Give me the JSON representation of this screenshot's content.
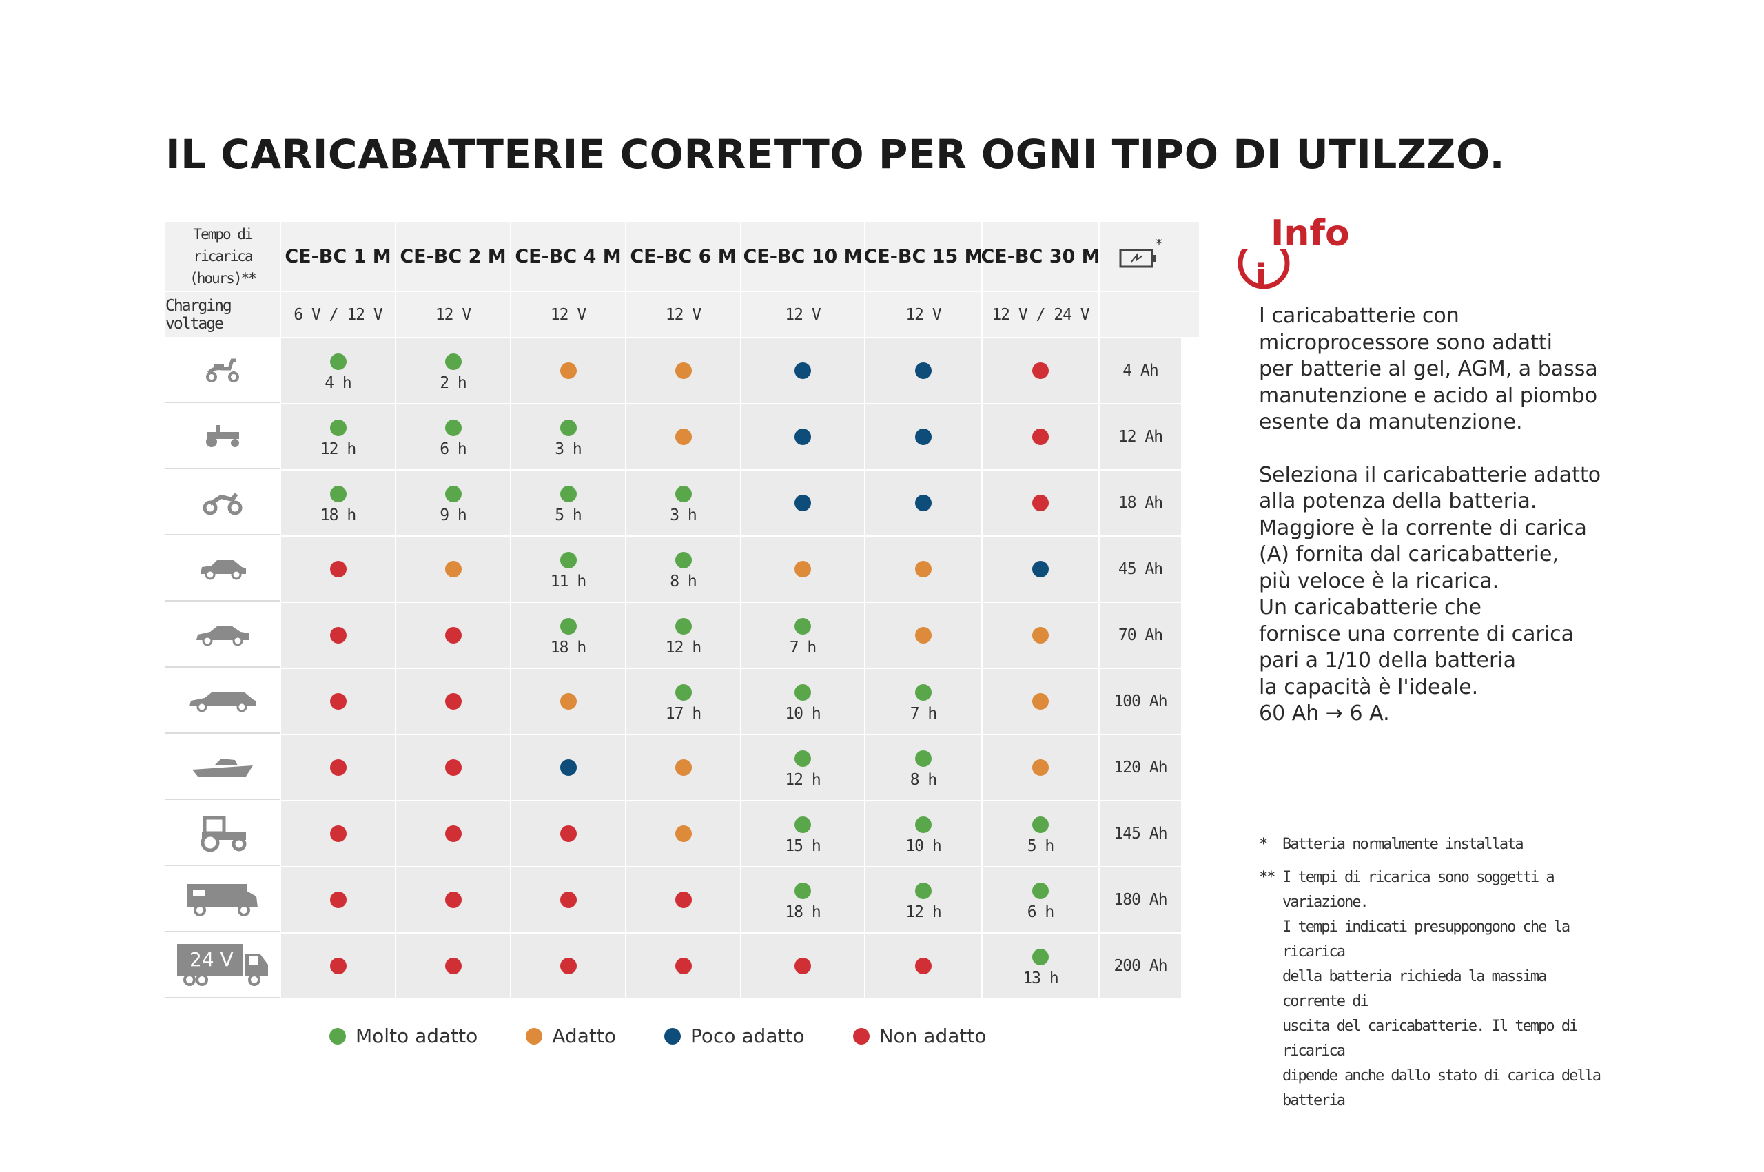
{
  "title": "IL CARICABATTERIE CORRETTO PER OGNI TIPO DI UTILZZO.",
  "table": {
    "time_header": [
      "Tempo di",
      "ricarica (hours)**"
    ],
    "voltage_label": "Charging voltage",
    "models": [
      "CE-BC 1 M",
      "CE-BC 2 M",
      "CE-BC 4 M",
      "CE-BC 6 M",
      "CE-BC 10 M",
      "CE-BC 15 M",
      "CE-BC 30 M"
    ],
    "battery_header_mark": "*",
    "voltages": [
      "6 V / 12 V",
      "12 V",
      "12 V",
      "12 V",
      "12 V",
      "12 V",
      "12 V / 24 V"
    ],
    "rows": [
      {
        "vehicle": "scooter-icon",
        "cells": [
          {
            "rating": "g",
            "hours": "4 h"
          },
          {
            "rating": "g",
            "hours": "2 h"
          },
          {
            "rating": "o",
            "hours": ""
          },
          {
            "rating": "o",
            "hours": ""
          },
          {
            "rating": "b",
            "hours": ""
          },
          {
            "rating": "b",
            "hours": ""
          },
          {
            "rating": "r",
            "hours": ""
          }
        ],
        "capacity": "4 Ah"
      },
      {
        "vehicle": "lawn-tractor-icon",
        "cells": [
          {
            "rating": "g",
            "hours": "12 h"
          },
          {
            "rating": "g",
            "hours": "6 h"
          },
          {
            "rating": "g",
            "hours": "3 h"
          },
          {
            "rating": "o",
            "hours": ""
          },
          {
            "rating": "b",
            "hours": ""
          },
          {
            "rating": "b",
            "hours": ""
          },
          {
            "rating": "r",
            "hours": ""
          }
        ],
        "capacity": "12 Ah"
      },
      {
        "vehicle": "motorcycle-icon",
        "cells": [
          {
            "rating": "g",
            "hours": "18 h"
          },
          {
            "rating": "g",
            "hours": "9 h"
          },
          {
            "rating": "g",
            "hours": "5 h"
          },
          {
            "rating": "g",
            "hours": "3 h"
          },
          {
            "rating": "b",
            "hours": ""
          },
          {
            "rating": "b",
            "hours": ""
          },
          {
            "rating": "r",
            "hours": ""
          }
        ],
        "capacity": "18 Ah"
      },
      {
        "vehicle": "small-car-icon",
        "cells": [
          {
            "rating": "r",
            "hours": ""
          },
          {
            "rating": "o",
            "hours": ""
          },
          {
            "rating": "g",
            "hours": "11 h"
          },
          {
            "rating": "g",
            "hours": "8 h"
          },
          {
            "rating": "o",
            "hours": ""
          },
          {
            "rating": "o",
            "hours": ""
          },
          {
            "rating": "b",
            "hours": ""
          }
        ],
        "capacity": "45 Ah"
      },
      {
        "vehicle": "sedan-icon",
        "cells": [
          {
            "rating": "r",
            "hours": ""
          },
          {
            "rating": "r",
            "hours": ""
          },
          {
            "rating": "g",
            "hours": "18 h"
          },
          {
            "rating": "g",
            "hours": "12 h"
          },
          {
            "rating": "g",
            "hours": "7 h"
          },
          {
            "rating": "o",
            "hours": ""
          },
          {
            "rating": "o",
            "hours": ""
          }
        ],
        "capacity": "70 Ah"
      },
      {
        "vehicle": "estate-car-icon",
        "cells": [
          {
            "rating": "r",
            "hours": ""
          },
          {
            "rating": "r",
            "hours": ""
          },
          {
            "rating": "o",
            "hours": ""
          },
          {
            "rating": "g",
            "hours": "17 h"
          },
          {
            "rating": "g",
            "hours": "10 h"
          },
          {
            "rating": "g",
            "hours": "7 h"
          },
          {
            "rating": "o",
            "hours": ""
          }
        ],
        "capacity": "100 Ah"
      },
      {
        "vehicle": "boat-icon",
        "cells": [
          {
            "rating": "r",
            "hours": ""
          },
          {
            "rating": "r",
            "hours": ""
          },
          {
            "rating": "b",
            "hours": ""
          },
          {
            "rating": "o",
            "hours": ""
          },
          {
            "rating": "g",
            "hours": "12 h"
          },
          {
            "rating": "g",
            "hours": "8 h"
          },
          {
            "rating": "o",
            "hours": ""
          }
        ],
        "capacity": "120 Ah"
      },
      {
        "vehicle": "tractor-icon",
        "cells": [
          {
            "rating": "r",
            "hours": ""
          },
          {
            "rating": "r",
            "hours": ""
          },
          {
            "rating": "r",
            "hours": ""
          },
          {
            "rating": "o",
            "hours": ""
          },
          {
            "rating": "g",
            "hours": "15 h"
          },
          {
            "rating": "g",
            "hours": "10 h"
          },
          {
            "rating": "g",
            "hours": "5 h"
          }
        ],
        "capacity": "145 Ah"
      },
      {
        "vehicle": "camper-icon",
        "cells": [
          {
            "rating": "r",
            "hours": ""
          },
          {
            "rating": "r",
            "hours": ""
          },
          {
            "rating": "r",
            "hours": ""
          },
          {
            "rating": "r",
            "hours": ""
          },
          {
            "rating": "g",
            "hours": "18 h"
          },
          {
            "rating": "g",
            "hours": "12 h"
          },
          {
            "rating": "g",
            "hours": "6 h"
          }
        ],
        "capacity": "180 Ah"
      },
      {
        "vehicle": "truck-24v-icon",
        "vehicle_text": "24 V",
        "cells": [
          {
            "rating": "r",
            "hours": ""
          },
          {
            "rating": "r",
            "hours": ""
          },
          {
            "rating": "r",
            "hours": ""
          },
          {
            "rating": "r",
            "hours": ""
          },
          {
            "rating": "r",
            "hours": ""
          },
          {
            "rating": "r",
            "hours": ""
          },
          {
            "rating": "g",
            "hours": "13 h"
          }
        ],
        "capacity": "200 Ah"
      }
    ]
  },
  "legend": [
    {
      "rating": "g",
      "label": "Molto adatto"
    },
    {
      "rating": "o",
      "label": "Adatto"
    },
    {
      "rating": "b",
      "label": "Poco adatto"
    },
    {
      "rating": "r",
      "label": "Non adatto"
    }
  ],
  "colors": {
    "g": "#5aa64b",
    "o": "#dd8a3b",
    "b": "#0e4d79",
    "r": "#d03035",
    "info_red": "#c8242b"
  },
  "info": {
    "logo_text": "Info",
    "logo_i": "i",
    "paragraph1": [
      "I caricabatterie con",
      "microprocessore sono adatti",
      "per batterie al gel, AGM, a bassa",
      "manutenzione e acido al piombo",
      "esente da manutenzione."
    ],
    "paragraph2": [
      "Seleziona il caricabatterie adatto",
      "alla potenza della batteria.",
      "Maggiore è la corrente di carica",
      "(A) fornita dal caricabatterie,",
      "più veloce è la ricarica.",
      "Un caricabatterie che",
      "fornisce una corrente di carica",
      "pari a 1/10 della batteria",
      "la capacità è l'ideale.",
      "60 Ah → 6 A."
    ]
  },
  "notes": [
    {
      "mark": "*",
      "lines": [
        "Batteria normalmente installata"
      ]
    },
    {
      "mark": "**",
      "lines": [
        "I tempi di ricarica sono soggetti a variazione.",
        "I tempi indicati presuppongono che la ricarica",
        "della batteria richieda la massima corrente di",
        "uscita del caricabatterie. Il tempo di ricarica",
        "dipende anche dallo stato di carica della batteria"
      ]
    }
  ]
}
